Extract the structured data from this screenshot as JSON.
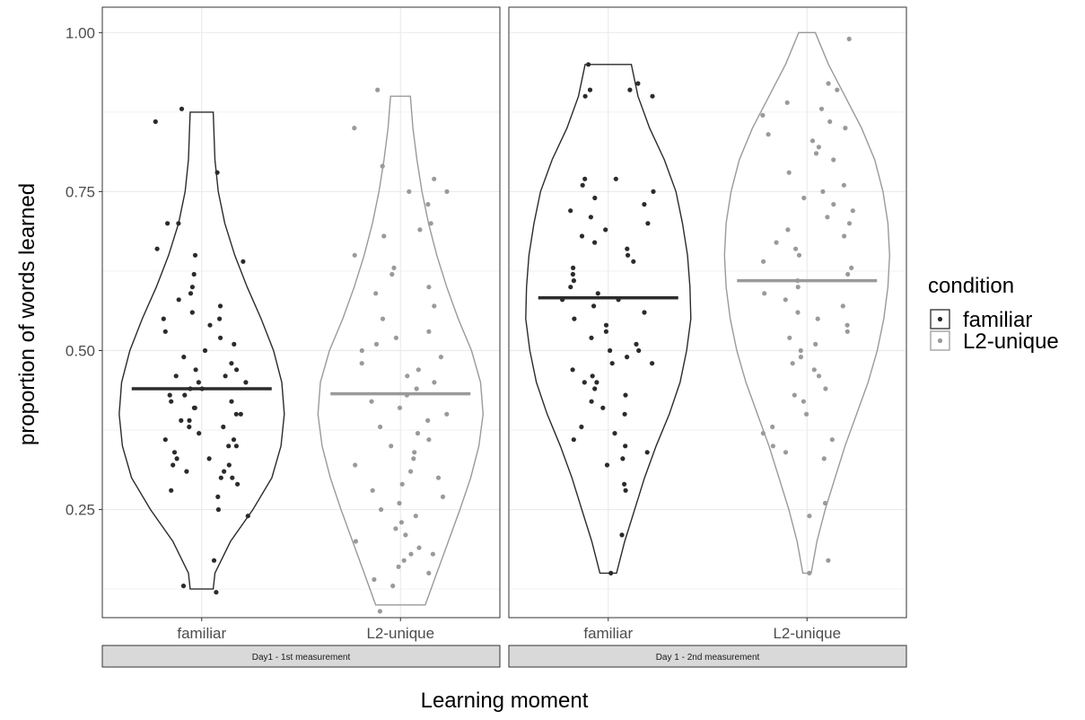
{
  "chart_data": {
    "type": "violin",
    "ylabel": "proportion of words learned",
    "xlabel": "Learning moment",
    "ylim": [
      0.08,
      1.04
    ],
    "yticks": [
      0.25,
      0.5,
      0.75,
      1.0
    ],
    "ytick_labels": [
      "0.25",
      "0.50",
      "0.75",
      "1.00"
    ],
    "grid": true,
    "legend": {
      "title": "condition",
      "placement": "right",
      "entries": [
        {
          "label": "familiar",
          "color": "#2b2b2b"
        },
        {
          "label": "L2-unique",
          "color": "#9a9a9a"
        }
      ]
    },
    "conditions": [
      "familiar",
      "L2-unique"
    ],
    "panels": [
      {
        "strip": "Day1 - 1st measurement",
        "groups": [
          {
            "condition": "familiar",
            "color": "#2b2b2b",
            "median": 0.44,
            "ymin": 0.125,
            "ymax": 0.875,
            "violin": [
              [
                0.125,
                0.14
              ],
              [
                0.15,
                0.16
              ],
              [
                0.2,
                0.35
              ],
              [
                0.25,
                0.62
              ],
              [
                0.3,
                0.85
              ],
              [
                0.35,
                0.96
              ],
              [
                0.4,
                1.0
              ],
              [
                0.45,
                0.97
              ],
              [
                0.5,
                0.87
              ],
              [
                0.55,
                0.72
              ],
              [
                0.6,
                0.55
              ],
              [
                0.65,
                0.4
              ],
              [
                0.7,
                0.28
              ],
              [
                0.75,
                0.2
              ],
              [
                0.8,
                0.16
              ],
              [
                0.875,
                0.14
              ]
            ],
            "points": [
              0.12,
              0.13,
              0.17,
              0.24,
              0.25,
              0.27,
              0.28,
              0.29,
              0.3,
              0.3,
              0.31,
              0.31,
              0.32,
              0.32,
              0.33,
              0.33,
              0.34,
              0.35,
              0.35,
              0.36,
              0.36,
              0.37,
              0.38,
              0.38,
              0.39,
              0.39,
              0.4,
              0.4,
              0.41,
              0.41,
              0.42,
              0.42,
              0.43,
              0.43,
              0.44,
              0.44,
              0.45,
              0.45,
              0.46,
              0.46,
              0.47,
              0.47,
              0.48,
              0.49,
              0.5,
              0.51,
              0.52,
              0.53,
              0.54,
              0.55,
              0.55,
              0.56,
              0.57,
              0.58,
              0.59,
              0.6,
              0.62,
              0.64,
              0.65,
              0.66,
              0.7,
              0.7,
              0.78,
              0.86,
              0.88
            ]
          },
          {
            "condition": "L2-unique",
            "color": "#9a9a9a",
            "median": 0.432,
            "ymin": 0.1,
            "ymax": 0.9,
            "violin": [
              [
                0.1,
                0.3
              ],
              [
                0.15,
                0.44
              ],
              [
                0.2,
                0.58
              ],
              [
                0.25,
                0.72
              ],
              [
                0.3,
                0.85
              ],
              [
                0.35,
                0.95
              ],
              [
                0.4,
                1.0
              ],
              [
                0.45,
                0.97
              ],
              [
                0.5,
                0.86
              ],
              [
                0.55,
                0.7
              ],
              [
                0.6,
                0.56
              ],
              [
                0.65,
                0.44
              ],
              [
                0.7,
                0.34
              ],
              [
                0.75,
                0.26
              ],
              [
                0.8,
                0.2
              ],
              [
                0.85,
                0.15
              ],
              [
                0.9,
                0.12
              ]
            ],
            "points": [
              0.09,
              0.13,
              0.14,
              0.15,
              0.16,
              0.17,
              0.18,
              0.18,
              0.19,
              0.2,
              0.21,
              0.22,
              0.23,
              0.24,
              0.25,
              0.26,
              0.27,
              0.28,
              0.29,
              0.3,
              0.31,
              0.32,
              0.33,
              0.34,
              0.35,
              0.36,
              0.37,
              0.38,
              0.39,
              0.4,
              0.41,
              0.42,
              0.43,
              0.44,
              0.45,
              0.46,
              0.47,
              0.48,
              0.49,
              0.5,
              0.51,
              0.52,
              0.53,
              0.55,
              0.57,
              0.59,
              0.6,
              0.62,
              0.63,
              0.65,
              0.68,
              0.69,
              0.7,
              0.73,
              0.75,
              0.75,
              0.77,
              0.79,
              0.85,
              0.91
            ]
          }
        ]
      },
      {
        "strip": "Day 1 - 2nd measurement",
        "groups": [
          {
            "condition": "familiar",
            "color": "#2b2b2b",
            "median": 0.583,
            "ymin": 0.15,
            "ymax": 0.95,
            "violin": [
              [
                0.15,
                0.1
              ],
              [
                0.2,
                0.2
              ],
              [
                0.25,
                0.32
              ],
              [
                0.3,
                0.44
              ],
              [
                0.35,
                0.58
              ],
              [
                0.4,
                0.74
              ],
              [
                0.45,
                0.87
              ],
              [
                0.5,
                0.95
              ],
              [
                0.55,
                1.0
              ],
              [
                0.6,
                0.99
              ],
              [
                0.65,
                0.96
              ],
              [
                0.7,
                0.9
              ],
              [
                0.75,
                0.82
              ],
              [
                0.8,
                0.68
              ],
              [
                0.85,
                0.5
              ],
              [
                0.9,
                0.36
              ],
              [
                0.95,
                0.28
              ]
            ],
            "points": [
              0.15,
              0.21,
              0.28,
              0.29,
              0.32,
              0.33,
              0.34,
              0.35,
              0.36,
              0.37,
              0.38,
              0.4,
              0.41,
              0.42,
              0.43,
              0.44,
              0.45,
              0.45,
              0.46,
              0.47,
              0.48,
              0.48,
              0.49,
              0.5,
              0.5,
              0.51,
              0.52,
              0.53,
              0.54,
              0.55,
              0.56,
              0.57,
              0.58,
              0.58,
              0.59,
              0.6,
              0.61,
              0.62,
              0.63,
              0.64,
              0.65,
              0.66,
              0.67,
              0.68,
              0.69,
              0.7,
              0.71,
              0.72,
              0.73,
              0.74,
              0.75,
              0.76,
              0.77,
              0.77,
              0.9,
              0.9,
              0.91,
              0.91,
              0.92,
              0.95
            ]
          },
          {
            "condition": "L2-unique",
            "color": "#9a9a9a",
            "median": 0.61,
            "ymin": 0.15,
            "ymax": 1.0,
            "violin": [
              [
                0.15,
                0.05
              ],
              [
                0.2,
                0.12
              ],
              [
                0.25,
                0.22
              ],
              [
                0.3,
                0.34
              ],
              [
                0.35,
                0.46
              ],
              [
                0.4,
                0.6
              ],
              [
                0.45,
                0.74
              ],
              [
                0.5,
                0.85
              ],
              [
                0.55,
                0.93
              ],
              [
                0.6,
                0.98
              ],
              [
                0.65,
                1.0
              ],
              [
                0.7,
                0.98
              ],
              [
                0.75,
                0.92
              ],
              [
                0.8,
                0.82
              ],
              [
                0.85,
                0.66
              ],
              [
                0.9,
                0.46
              ],
              [
                0.95,
                0.26
              ],
              [
                1.0,
                0.1
              ]
            ],
            "points": [
              0.15,
              0.17,
              0.24,
              0.26,
              0.33,
              0.34,
              0.35,
              0.36,
              0.37,
              0.38,
              0.4,
              0.42,
              0.43,
              0.44,
              0.46,
              0.47,
              0.48,
              0.49,
              0.5,
              0.51,
              0.52,
              0.53,
              0.54,
              0.55,
              0.56,
              0.57,
              0.58,
              0.59,
              0.6,
              0.61,
              0.62,
              0.63,
              0.64,
              0.65,
              0.66,
              0.67,
              0.68,
              0.69,
              0.7,
              0.71,
              0.72,
              0.73,
              0.74,
              0.75,
              0.76,
              0.78,
              0.8,
              0.81,
              0.82,
              0.83,
              0.84,
              0.85,
              0.86,
              0.87,
              0.88,
              0.89,
              0.91,
              0.92,
              0.99
            ]
          }
        ]
      }
    ]
  }
}
